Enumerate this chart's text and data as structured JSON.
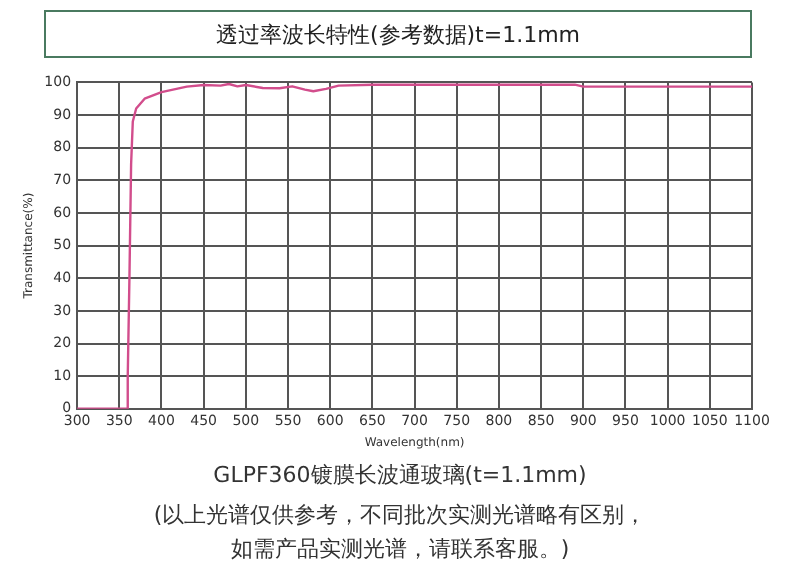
{
  "chart_data": {
    "type": "line",
    "title": "透过率波长特性(参考数据)t=1.1mm",
    "subtitle": "GLPF360镀膜长波通玻璃(t=1.1mm)",
    "xlabel": "Wavelength(nm)",
    "ylabel": "Transmittance(%)",
    "annotations": [
      "(以上光谱仅供参考，不同批次实测光谱略有区别，如需产品实测光谱，请联系客服。)"
    ],
    "x": [
      300,
      355,
      358,
      360,
      362,
      364,
      366,
      370,
      380,
      400,
      430,
      450,
      470,
      480,
      490,
      500,
      520,
      540,
      555,
      570,
      580,
      595,
      610,
      650,
      700,
      800,
      890,
      900,
      1000,
      1100
    ],
    "series": [
      {
        "color": "#d24d8c",
        "values": [
          0,
          0,
          0,
          10,
          40,
          75,
          88,
          92,
          95,
          97,
          98.7,
          99.2,
          99,
          99.5,
          98.8,
          99.2,
          98.3,
          98.2,
          98.8,
          97.8,
          97.3,
          98,
          99,
          99.3,
          99.3,
          99.3,
          99.3,
          98.7,
          98.7,
          98.7
        ]
      }
    ],
    "xlim": [
      300,
      1100
    ],
    "xticks": [
      300,
      350,
      400,
      450,
      500,
      550,
      600,
      650,
      700,
      750,
      800,
      850,
      900,
      950,
      1000,
      1050,
      1100
    ],
    "ylim": [
      0,
      100
    ],
    "yticks": [
      0,
      10,
      20,
      30,
      40,
      50,
      60,
      70,
      80,
      90,
      100
    ],
    "grid": true,
    "legend": false,
    "marker": "none",
    "line_style": "solid"
  }
}
